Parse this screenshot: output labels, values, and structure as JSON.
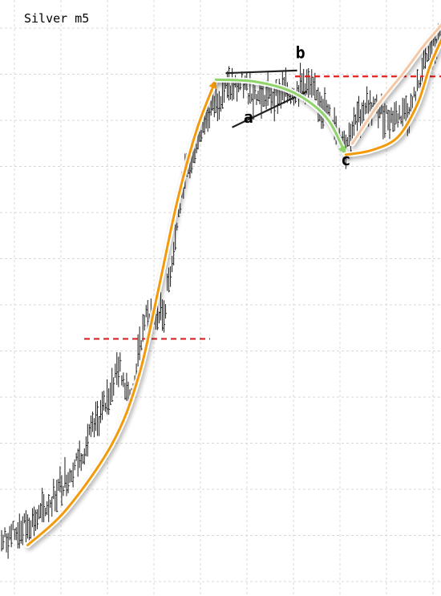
{
  "chart_data": {
    "type": "line",
    "title": "Silver m5",
    "grid": true,
    "levels": [
      {
        "name": "breakout-level",
        "price": 56.1,
        "color": "#e0201e",
        "style": "dashed"
      },
      {
        "name": "resistance-level",
        "price": 96.3,
        "color": "#e0201e",
        "style": "dashed"
      }
    ],
    "labels": [
      {
        "text": "a",
        "bar": 38,
        "price": 89.2
      },
      {
        "text": "b",
        "bar": 46,
        "price": 99.1
      },
      {
        "text": "c",
        "bar": 53,
        "price": 82.7
      }
    ],
    "anchors": [
      {
        "bar": 0,
        "price": 25
      },
      {
        "bar": 6,
        "price": 29
      },
      {
        "bar": 12,
        "price": 38
      },
      {
        "bar": 16,
        "price": 46
      },
      {
        "bar": 18,
        "price": 52
      },
      {
        "bar": 20,
        "price": 47
      },
      {
        "bar": 22,
        "price": 59
      },
      {
        "bar": 25,
        "price": 60
      },
      {
        "bar": 28,
        "price": 80
      },
      {
        "bar": 31,
        "price": 89
      },
      {
        "bar": 34,
        "price": 94
      },
      {
        "bar": 37,
        "price": 95
      },
      {
        "bar": 40,
        "price": 93
      },
      {
        "bar": 44,
        "price": 94
      },
      {
        "bar": 47,
        "price": 95
      },
      {
        "bar": 50,
        "price": 91
      },
      {
        "bar": 53,
        "price": 86
      },
      {
        "bar": 56,
        "price": 92
      },
      {
        "bar": 60,
        "price": 90
      },
      {
        "bar": 63,
        "price": 91
      },
      {
        "bar": 65,
        "price": 98
      },
      {
        "bar": 68,
        "price": 103
      }
    ],
    "curves": [
      {
        "name": "rally-curve",
        "color": "#f39a0b",
        "arrow": true,
        "points": [
          [
            4,
            24.5
          ],
          [
            10,
            30
          ],
          [
            17,
            40
          ],
          [
            21,
            50
          ],
          [
            24,
            63
          ],
          [
            27,
            77
          ],
          [
            30,
            88
          ],
          [
            33,
            95.8
          ]
        ]
      },
      {
        "name": "pullback-curve",
        "color": "#8fd36b",
        "arrow": true,
        "points": [
          [
            33,
            95.8
          ],
          [
            39,
            95.5
          ],
          [
            45,
            93.8
          ],
          [
            50,
            90
          ],
          [
            53,
            84.3
          ]
        ]
      },
      {
        "name": "recovery-curve",
        "color": "#f39a0b",
        "arrow": false,
        "points": [
          [
            53,
            84.3
          ],
          [
            57,
            85
          ],
          [
            61,
            87
          ],
          [
            64,
            92
          ],
          [
            66,
            98
          ],
          [
            68,
            102.5
          ]
        ]
      },
      {
        "name": "projection-curve",
        "color": "#f6c7a3",
        "arrow": false,
        "points": [
          [
            54,
            86
          ],
          [
            58,
            92
          ],
          [
            62,
            97
          ],
          [
            65,
            101
          ],
          [
            68,
            104.5
          ]
        ]
      }
    ],
    "trendlines": [
      {
        "name": "triangle-upper-line",
        "color": "#222222",
        "from": [
          34.5,
          96.8
        ],
        "to": [
          45.5,
          97.2
        ]
      },
      {
        "name": "triangle-lower-line",
        "color": "#222222",
        "from": [
          35.5,
          88.5
        ],
        "to": [
          47,
          94
        ]
      }
    ]
  }
}
